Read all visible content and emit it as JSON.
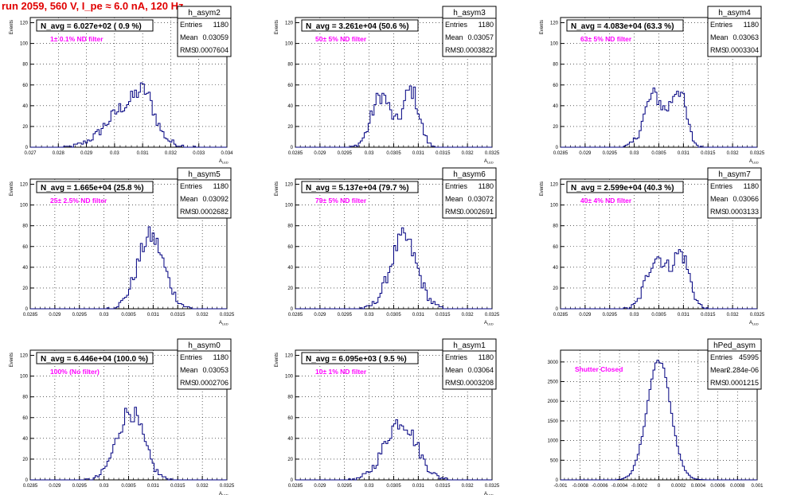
{
  "title": "run 2059,   560 V, I_pe ≈ 6.0 nA, 120 Hz",
  "colors": {
    "title": "#e00000",
    "hist": "#000080",
    "annot": "#ff00ff",
    "grid": "#000000"
  },
  "chart_data": [
    {
      "type": "histogram",
      "name": "h_asym2",
      "ylabel": "Events",
      "xlabel": "A_LED",
      "navg": "N_avg = 6.027e+02 ( 0.9 %)",
      "filter": "1± 0.1% ND filter",
      "stats": {
        "Entries": "1180",
        "Mean": "0.03059",
        "RMS": "0.0007604"
      },
      "xlim": [
        0.027,
        0.034
      ],
      "ylim": [
        0,
        125
      ],
      "xticks": [
        "0.027",
        "0.028",
        "0.029",
        "0.03",
        "0.031",
        "0.032",
        "0.033",
        "0.034"
      ],
      "yticks": [
        "0",
        "20",
        "40",
        "60",
        "80",
        "100",
        "120"
      ],
      "peaks": [
        [
          0.0305,
          0.00075,
          40
        ],
        [
          0.0311,
          0.0003,
          25
        ]
      ]
    },
    {
      "type": "histogram",
      "name": "h_asym3",
      "ylabel": "Events",
      "xlabel": "A_LED",
      "navg": "N_avg = 3.261e+04 (50.6 %)",
      "filter": "50± 5% ND filter",
      "stats": {
        "Entries": "1180",
        "Mean": "0.03057",
        "RMS": "0.0003822"
      },
      "xlim": [
        0.0285,
        0.0325
      ],
      "ylim": [
        0,
        125
      ],
      "xticks": [
        "0.0285",
        "0.029",
        "0.0295",
        "0.03",
        "0.0305",
        "0.031",
        "0.0315",
        "0.032",
        "0.0325"
      ],
      "yticks": [
        "0",
        "20",
        "40",
        "60",
        "80",
        "100",
        "120"
      ],
      "peaks": [
        [
          0.03025,
          0.0002,
          50
        ],
        [
          0.03085,
          0.00016,
          55
        ]
      ]
    },
    {
      "type": "histogram",
      "name": "h_asym4",
      "ylabel": "Events",
      "xlabel": "A_LED",
      "navg": "N_avg = 4.083e+04 (63.3 %)",
      "filter": "63± 5% ND filter",
      "stats": {
        "Entries": "1180",
        "Mean": "0.03063",
        "RMS": "0.0003304"
      },
      "xlim": [
        0.0285,
        0.0325
      ],
      "ylim": [
        0,
        125
      ],
      "xticks": [
        "0.0285",
        "0.029",
        "0.0295",
        "0.03",
        "0.0305",
        "0.031",
        "0.0315",
        "0.032",
        "0.0325"
      ],
      "yticks": [
        "0",
        "20",
        "40",
        "60",
        "80",
        "100",
        "120"
      ],
      "peaks": [
        [
          0.0304,
          0.0002,
          50
        ],
        [
          0.0309,
          0.00015,
          55
        ]
      ]
    },
    {
      "type": "histogram",
      "name": "h_asym5",
      "ylabel": "Events",
      "xlabel": "A_LED",
      "navg": "N_avg = 1.665e+04 (25.8 %)",
      "filter": "25± 2.5% ND filter",
      "stats": {
        "Entries": "1180",
        "Mean": "0.03092",
        "RMS": "0.0002682"
      },
      "xlim": [
        0.0285,
        0.0325
      ],
      "ylim": [
        0,
        125
      ],
      "xticks": [
        "0.0285",
        "0.029",
        "0.0295",
        "0.03",
        "0.0305",
        "0.031",
        "0.0315",
        "0.032",
        "0.0325"
      ],
      "yticks": [
        "0",
        "20",
        "40",
        "60",
        "80",
        "100",
        "120"
      ],
      "peaks": [
        [
          0.03095,
          0.00027,
          70
        ]
      ]
    },
    {
      "type": "histogram",
      "name": "h_asym6",
      "ylabel": "Events",
      "xlabel": "A_LED",
      "navg": "N_avg = 5.137e+04 (79.7 %)",
      "filter": "79± 5% ND filter",
      "stats": {
        "Entries": "1180",
        "Mean": "0.03072",
        "RMS": "0.0002691"
      },
      "xlim": [
        0.0285,
        0.0325
      ],
      "ylim": [
        0,
        125
      ],
      "xticks": [
        "0.0285",
        "0.029",
        "0.0295",
        "0.03",
        "0.0305",
        "0.031",
        "0.0315",
        "0.032",
        "0.0325"
      ],
      "yticks": [
        "0",
        "20",
        "40",
        "60",
        "80",
        "100",
        "120"
      ],
      "peaks": [
        [
          0.0307,
          0.00027,
          68
        ]
      ]
    },
    {
      "type": "histogram",
      "name": "h_asym7",
      "ylabel": "Events",
      "xlabel": "A_LED",
      "navg": "N_avg = 2.599e+04 (40.3 %)",
      "filter": "40± 4% ND filter",
      "stats": {
        "Entries": "1180",
        "Mean": "0.03066",
        "RMS": "0.0003133"
      },
      "xlim": [
        0.0285,
        0.0325
      ],
      "ylim": [
        0,
        125
      ],
      "xticks": [
        "0.0285",
        "0.029",
        "0.0295",
        "0.03",
        "0.0305",
        "0.031",
        "0.0315",
        "0.032",
        "0.0325"
      ],
      "yticks": [
        "0",
        "20",
        "40",
        "60",
        "80",
        "100",
        "120"
      ],
      "peaks": [
        [
          0.03045,
          0.0002,
          50
        ],
        [
          0.03095,
          0.00017,
          52
        ]
      ]
    },
    {
      "type": "histogram",
      "name": "h_asym0",
      "ylabel": "Events",
      "xlabel": "A_LED",
      "navg": "N_avg = 6.446e+04 (100.0 %)",
      "filter": "100% (No filter)",
      "stats": {
        "Entries": "1180",
        "Mean": "0.03053",
        "RMS": "0.0002706"
      },
      "xlim": [
        0.0285,
        0.0325
      ],
      "ylim": [
        0,
        125
      ],
      "xticks": [
        "0.0285",
        "0.029",
        "0.0295",
        "0.03",
        "0.0305",
        "0.031",
        "0.0315",
        "0.032",
        "0.0325"
      ],
      "yticks": [
        "0",
        "20",
        "40",
        "60",
        "80",
        "100",
        "120"
      ],
      "peaks": [
        [
          0.03053,
          0.00027,
          66
        ]
      ]
    },
    {
      "type": "histogram",
      "name": "h_asym1",
      "ylabel": "Events",
      "xlabel": "A_LED",
      "navg": "N_avg = 6.095e+03 ( 9.5 %)",
      "filter": "10± 1% ND filter",
      "stats": {
        "Entries": "1180",
        "Mean": "0.03064",
        "RMS": "0.0003208"
      },
      "xlim": [
        0.0285,
        0.0325
      ],
      "ylim": [
        0,
        125
      ],
      "xticks": [
        "0.0285",
        "0.029",
        "0.0295",
        "0.03",
        "0.0305",
        "0.031",
        "0.0315",
        "0.032",
        "0.0325"
      ],
      "yticks": [
        "0",
        "20",
        "40",
        "60",
        "80",
        "100",
        "120"
      ],
      "peaks": [
        [
          0.03064,
          0.00032,
          57
        ]
      ]
    },
    {
      "type": "histogram",
      "name": "hPed_asym",
      "ylabel": "",
      "xlabel": "",
      "navg": "",
      "filter": "Shutter Closed",
      "stats": {
        "Entries": "45995",
        "Mean": "2.284e-06",
        "RMS": "0.0001215"
      },
      "xlim": [
        -0.001,
        0.001
      ],
      "ylim": [
        0,
        3300
      ],
      "xticks": [
        "-0.001",
        "-0.0008",
        "-0.0006",
        "-0.0004",
        "-0.0002",
        "0",
        "0.0002",
        "0.0004",
        "0.0006",
        "0.0008",
        "0.001"
      ],
      "yticks": [
        "0",
        "500",
        "1000",
        "1500",
        "2000",
        "2500",
        "3000"
      ],
      "peaks": [
        [
          0.0,
          0.00012,
          3050
        ]
      ]
    }
  ]
}
